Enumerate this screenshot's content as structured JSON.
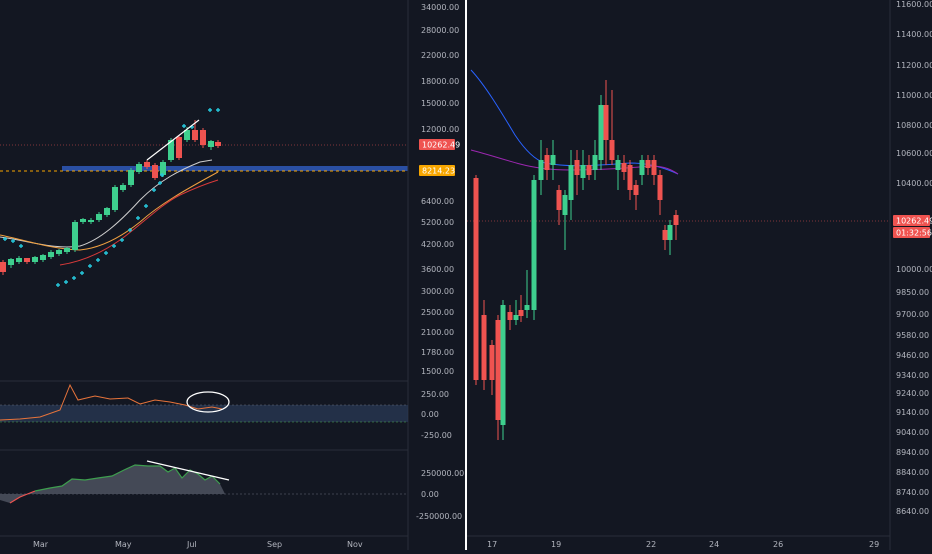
{
  "colors": {
    "background": "#131722",
    "up": "#26a69a",
    "down": "#ef5350",
    "up_bright": "#3ecf8e",
    "divider": "#ffffff",
    "grid": "#1e222d",
    "price_line": "#ef5350",
    "support_band": "#2a4fa3",
    "support_dashed": "#f7a600",
    "ma_orange": "#f0a040",
    "ma_red": "#d93a3a",
    "ma_white": "#cfcfcf",
    "ma_blue": "#2962ff",
    "ma_purple": "#9c27b0",
    "psar": "#26c6da",
    "osc_line": "#e8743b",
    "osc_band": "#2a3a55",
    "hist_fill": "#4a4f5c",
    "hist_line": "#3e9e4f",
    "annotation": "#ffffff"
  },
  "left_chart": {
    "price_ticks": [
      "34000.00",
      "28000.00",
      "22000.00",
      "18000.00",
      "15000.00",
      "12000.00",
      "10262.49",
      "8214.23",
      "6400.00",
      "5200.00",
      "4200.00",
      "3600.00",
      "3000.00",
      "2500.00",
      "2100.00",
      "1780.00",
      "1500.00"
    ],
    "current_price_label": "10262.49",
    "support_label": "8214.23",
    "osc_ticks": [
      "250.00",
      "0.00",
      "-250.00"
    ],
    "hist_ticks": [
      "250000.00",
      "0.00",
      "-250000.00"
    ],
    "time_labels": [
      "Mar",
      "May",
      "Jul",
      "Sep",
      "Nov"
    ],
    "icons": {
      "circle": "circle-annotation-icon"
    }
  },
  "right_chart": {
    "price_ticks": [
      "11600.00",
      "11400.00",
      "11200.00",
      "11000.00",
      "10800.00",
      "10600.00",
      "10400.00",
      "10262.49",
      "10000.00",
      "9850.00",
      "9700.00",
      "9580.00",
      "9460.00",
      "9340.00",
      "9240.00",
      "9140.00",
      "9040.00",
      "8940.00",
      "8840.00",
      "8740.00",
      "8640.00"
    ],
    "current_price_label": "10262.49",
    "countdown_label": "01:32:56",
    "time_labels": [
      "17",
      "19",
      "22",
      "24",
      "26",
      "29"
    ]
  }
}
